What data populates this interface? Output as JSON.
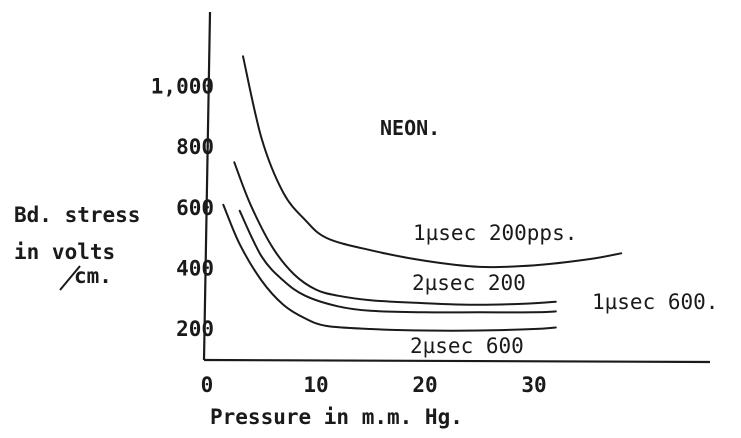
{
  "chart_data": {
    "type": "line",
    "title": "NEON.",
    "xlabel": "Pressure in m.m. Hg.",
    "ylabel_lines": [
      "Bd. stress",
      "in volts",
      "cm."
    ],
    "xlim": [
      0,
      38
    ],
    "ylim": [
      100,
      1200
    ],
    "x_ticks": [
      {
        "value": 0,
        "label": "0"
      },
      {
        "value": 10,
        "label": "10"
      },
      {
        "value": 20,
        "label": "20"
      },
      {
        "value": 30,
        "label": "30"
      }
    ],
    "y_ticks": [
      {
        "value": 200,
        "label": "200"
      },
      {
        "value": 400,
        "label": "400"
      },
      {
        "value": 600,
        "label": "600"
      },
      {
        "value": 800,
        "label": "800"
      },
      {
        "value": 1000,
        "label": "1,000"
      }
    ],
    "series": [
      {
        "name": "1µsec 200pps.",
        "points": [
          [
            3.3,
            1100
          ],
          [
            5,
            830
          ],
          [
            7,
            650
          ],
          [
            9,
            560
          ],
          [
            11,
            500
          ],
          [
            15,
            460
          ],
          [
            20,
            425
          ],
          [
            25,
            405
          ],
          [
            30,
            410
          ],
          [
            35,
            430
          ],
          [
            38,
            450
          ]
        ]
      },
      {
        "name": "2µsec 200",
        "points": [
          [
            2.5,
            750
          ],
          [
            4,
            610
          ],
          [
            6,
            470
          ],
          [
            8,
            380
          ],
          [
            10,
            330
          ],
          [
            12,
            310
          ],
          [
            15,
            295
          ],
          [
            20,
            285
          ],
          [
            25,
            280
          ],
          [
            30,
            285
          ],
          [
            32,
            290
          ]
        ]
      },
      {
        "name": "1µsec 600.",
        "points": [
          [
            3,
            590
          ],
          [
            5,
            440
          ],
          [
            7,
            360
          ],
          [
            9,
            310
          ],
          [
            12,
            275
          ],
          [
            15,
            260
          ],
          [
            20,
            255
          ],
          [
            25,
            255
          ],
          [
            30,
            255
          ],
          [
            32,
            258
          ]
        ]
      },
      {
        "name": "2µsec 600",
        "points": [
          [
            1.5,
            610
          ],
          [
            3,
            480
          ],
          [
            5,
            360
          ],
          [
            7,
            280
          ],
          [
            9,
            235
          ],
          [
            11,
            210
          ],
          [
            15,
            200
          ],
          [
            20,
            195
          ],
          [
            25,
            195
          ],
          [
            30,
            200
          ],
          [
            32,
            205
          ]
        ]
      }
    ]
  }
}
